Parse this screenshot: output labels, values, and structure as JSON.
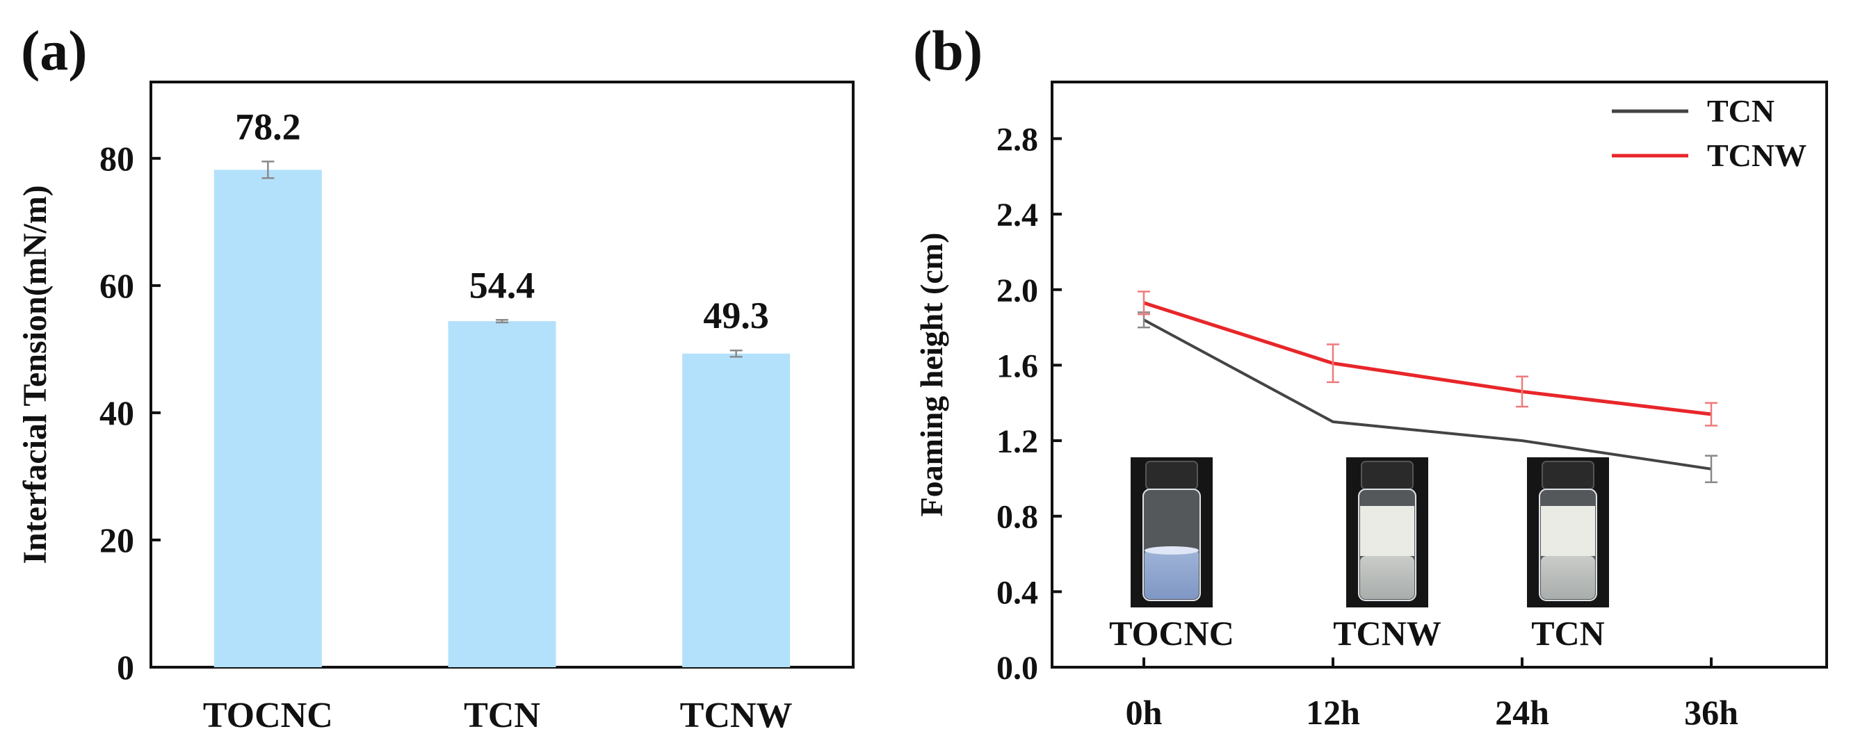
{
  "chart_data": [
    {
      "panel_label": "(a)",
      "type": "bar",
      "title": "",
      "xlabel": "",
      "ylabel": "Interfacial Tension(mN/m)",
      "categories": [
        "TOCNC",
        "TCN",
        "TCNW"
      ],
      "values": [
        78.2,
        54.4,
        49.3
      ],
      "value_labels": [
        "78.2",
        "54.4",
        "49.3"
      ],
      "errors": [
        1.3,
        0.2,
        0.5
      ],
      "ylim": [
        0,
        92
      ],
      "yticks": [
        0,
        20,
        40,
        60,
        80
      ],
      "ytick_labels": [
        "0",
        "20",
        "40",
        "60",
        "80"
      ],
      "bar_color": "#b3e1fb",
      "error_color": "#8a8a8a",
      "grid": false
    },
    {
      "panel_label": "(b)",
      "type": "line",
      "title": "",
      "xlabel": "",
      "ylabel": "Foaming height (cm)",
      "categories": [
        "0h",
        "12h",
        "24h",
        "36h"
      ],
      "ylim": [
        0,
        3.1
      ],
      "yticks": [
        0.0,
        0.4,
        0.8,
        1.2,
        1.6,
        2.0,
        2.4,
        2.8
      ],
      "ytick_labels": [
        "0.0",
        "0.4",
        "0.8",
        "1.2",
        "1.6",
        "2.0",
        "2.4",
        "2.8"
      ],
      "series": [
        {
          "name": "TCN",
          "color": "#444444",
          "values": [
            1.84,
            1.3,
            1.2,
            1.05
          ],
          "errors": [
            0.04,
            0.0,
            0.0,
            0.07
          ]
        },
        {
          "name": "TCNW",
          "color": "#e8262a",
          "values": [
            1.93,
            1.61,
            1.46,
            1.34
          ],
          "errors": [
            0.06,
            0.1,
            0.08,
            0.06
          ]
        }
      ],
      "legend_position": "top-right",
      "grid": false,
      "inset_photos": [
        {
          "label": "TOCNC",
          "foam": "none"
        },
        {
          "label": "TCNW",
          "foam": "white"
        },
        {
          "label": "TCN",
          "foam": "white"
        }
      ]
    }
  ]
}
